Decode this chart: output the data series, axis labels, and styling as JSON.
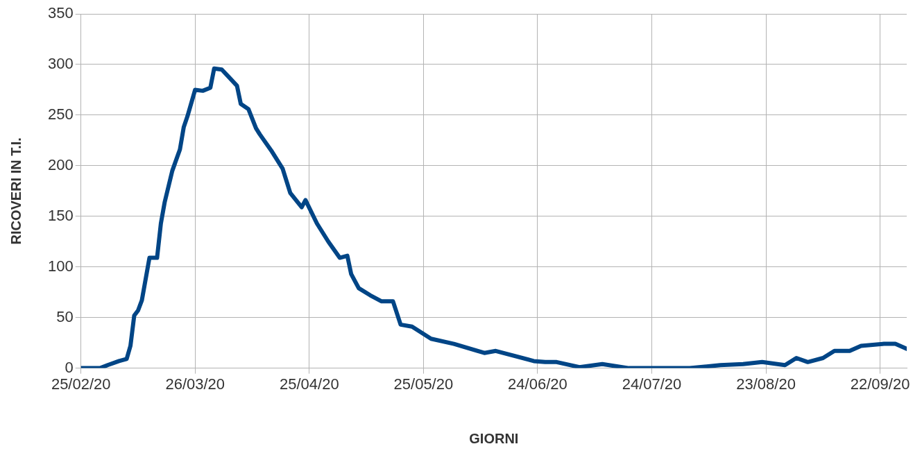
{
  "chart_data": {
    "type": "line",
    "xlabel": "GIORNI",
    "ylabel": "RICOVERI IN T.I.",
    "x": [
      "2020-02-25",
      "2020-03-01",
      "2020-03-03",
      "2020-03-06",
      "2020-03-08",
      "2020-03-09",
      "2020-03-10",
      "2020-03-11",
      "2020-03-12",
      "2020-03-14",
      "2020-03-16",
      "2020-03-17",
      "2020-03-18",
      "2020-03-20",
      "2020-03-22",
      "2020-03-23",
      "2020-03-24",
      "2020-03-26",
      "2020-03-28",
      "2020-03-30",
      "2020-03-31",
      "2020-04-02",
      "2020-04-04",
      "2020-04-06",
      "2020-04-07",
      "2020-04-09",
      "2020-04-11",
      "2020-04-12",
      "2020-04-15",
      "2020-04-18",
      "2020-04-20",
      "2020-04-23",
      "2020-04-24",
      "2020-04-27",
      "2020-04-30",
      "2020-05-03",
      "2020-05-05",
      "2020-05-06",
      "2020-05-08",
      "2020-05-11",
      "2020-05-14",
      "2020-05-17",
      "2020-05-19",
      "2020-05-22",
      "2020-05-27",
      "2020-06-02",
      "2020-06-10",
      "2020-06-13",
      "2020-06-23",
      "2020-06-26",
      "2020-06-29",
      "2020-07-05",
      "2020-07-11",
      "2020-07-18",
      "2020-07-23",
      "2020-08-03",
      "2020-08-11",
      "2020-08-17",
      "2020-08-22",
      "2020-08-28",
      "2020-08-31",
      "2020-09-03",
      "2020-09-07",
      "2020-09-10",
      "2020-09-14",
      "2020-09-17",
      "2020-09-23",
      "2020-09-26",
      "2020-09-29"
    ],
    "series": [
      {
        "color": "#004586",
        "values": [
          0,
          0,
          3,
          7,
          9,
          22,
          52,
          57,
          67,
          109,
          109,
          143,
          164,
          195,
          216,
          238,
          249,
          275,
          274,
          277,
          296,
          295,
          287,
          279,
          261,
          256,
          237,
          231,
          215,
          197,
          173,
          159,
          166,
          143,
          125,
          109,
          111,
          93,
          79,
          72,
          66,
          66,
          43,
          41,
          29,
          24,
          15,
          17,
          7,
          6,
          6,
          1,
          4,
          0,
          0,
          0,
          3,
          4,
          6,
          3,
          10,
          6,
          10,
          17,
          17,
          22,
          24,
          24,
          19
        ]
      }
    ],
    "xlim": [
      "2020-02-25",
      "2020-09-29"
    ],
    "xticks": [
      {
        "value": "2020-02-25",
        "label": "25/02/20"
      },
      {
        "value": "2020-03-26",
        "label": "26/03/20"
      },
      {
        "value": "2020-04-25",
        "label": "25/04/20"
      },
      {
        "value": "2020-05-25",
        "label": "25/05/20"
      },
      {
        "value": "2020-06-24",
        "label": "24/06/20"
      },
      {
        "value": "2020-07-24",
        "label": "24/07/20"
      },
      {
        "value": "2020-08-23",
        "label": "23/08/20"
      },
      {
        "value": "2020-09-22",
        "label": "22/09/20"
      }
    ],
    "ylim": [
      0,
      350
    ],
    "yticks": [
      0,
      50,
      100,
      150,
      200,
      250,
      300,
      350
    ],
    "grid": true,
    "legend": false,
    "marker": "none",
    "line_style": "solid"
  }
}
